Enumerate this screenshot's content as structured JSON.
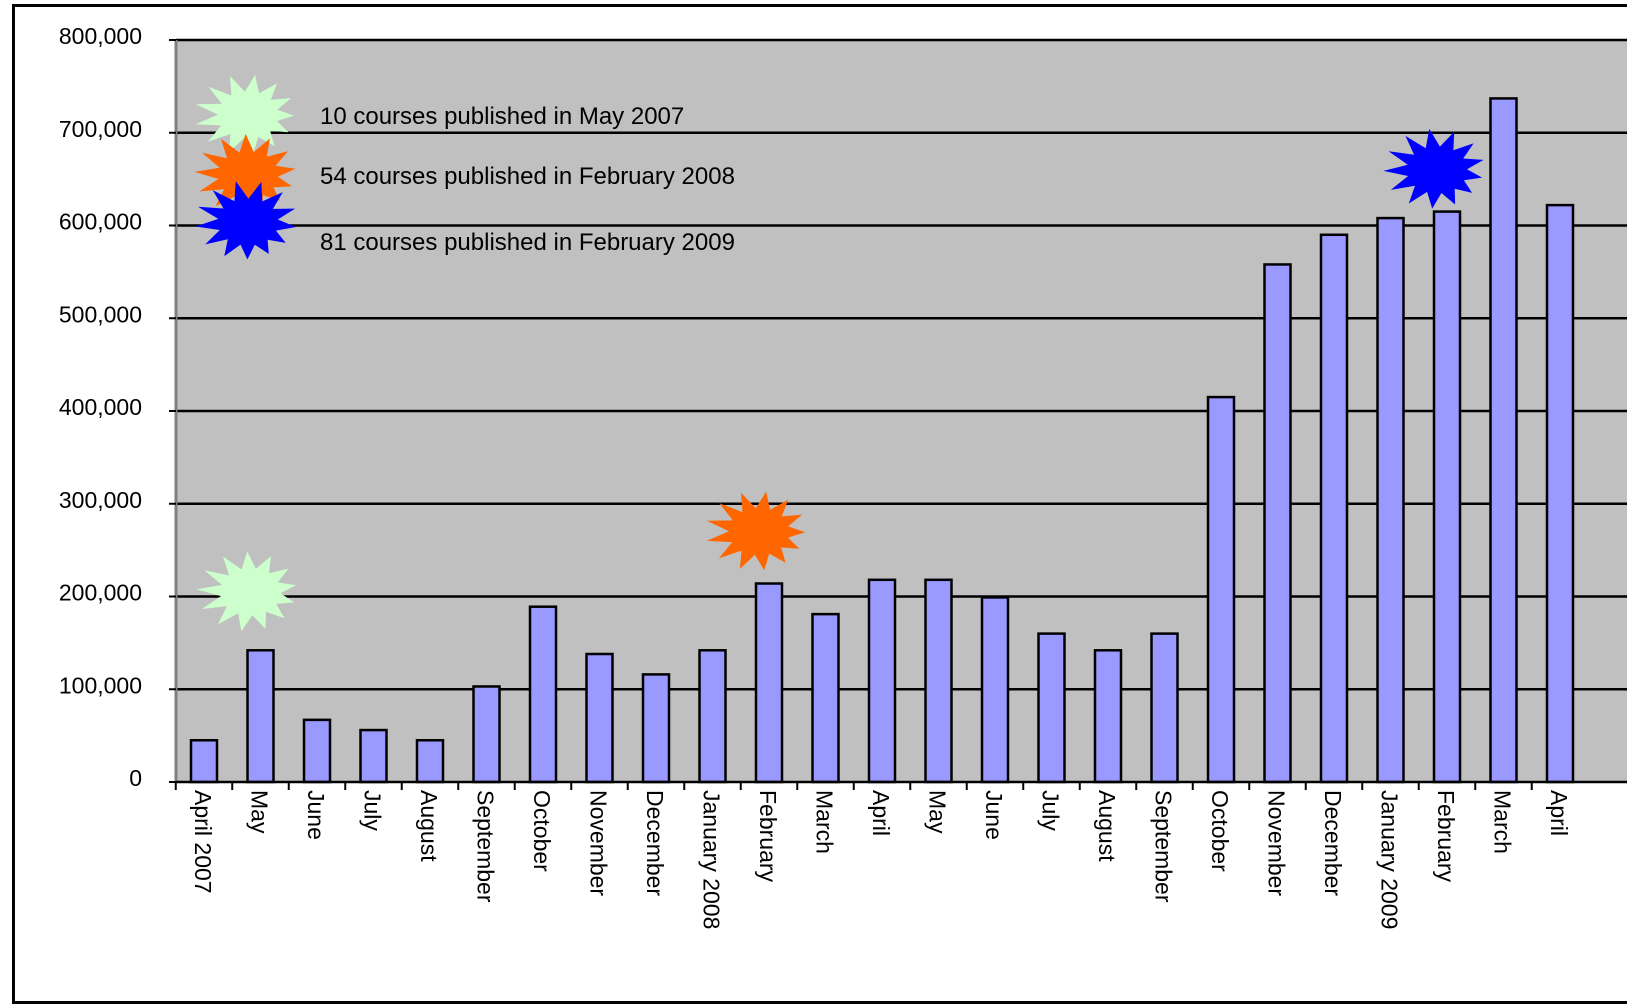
{
  "chart_data": {
    "type": "bar",
    "categories": [
      "April 2007",
      "May",
      "June",
      "July",
      "August",
      "September",
      "October",
      "November",
      "December",
      "January 2008",
      "February",
      "March",
      "April",
      "May",
      "June",
      "July",
      "August",
      "September",
      "October",
      "November",
      "December",
      "January 2009",
      "February",
      "March",
      "April"
    ],
    "values": [
      45000,
      142000,
      67000,
      56000,
      45000,
      103000,
      189000,
      138000,
      116000,
      142000,
      214000,
      181000,
      218000,
      218000,
      199000,
      160000,
      142000,
      160000,
      415000,
      558000,
      590000,
      608000,
      615000,
      737000,
      622000
    ],
    "ylim": [
      0,
      800000
    ],
    "yticks": [
      "0",
      "100,000",
      "200,000",
      "300,000",
      "400,000",
      "500,000",
      "600,000",
      "700,000",
      "800,000"
    ],
    "grid": true,
    "legend": [
      {
        "label": "10 courses published in May 2007",
        "color": "#ccffcc"
      },
      {
        "label": "54 courses published in February 2008",
        "color": "#ff6600"
      },
      {
        "label": "81 courses published in  February 2009",
        "color": "#0000ff"
      }
    ],
    "markers": [
      {
        "category_index": 1,
        "value": 205000,
        "color": "#ccffcc"
      },
      {
        "category_index": 10,
        "value": 270000,
        "color": "#ff6600"
      },
      {
        "category_index": 22,
        "value": 660000,
        "color": "#0000ff"
      }
    ],
    "colors": {
      "bar": "#9999ff",
      "plot_background": "#c0c0c0"
    }
  }
}
